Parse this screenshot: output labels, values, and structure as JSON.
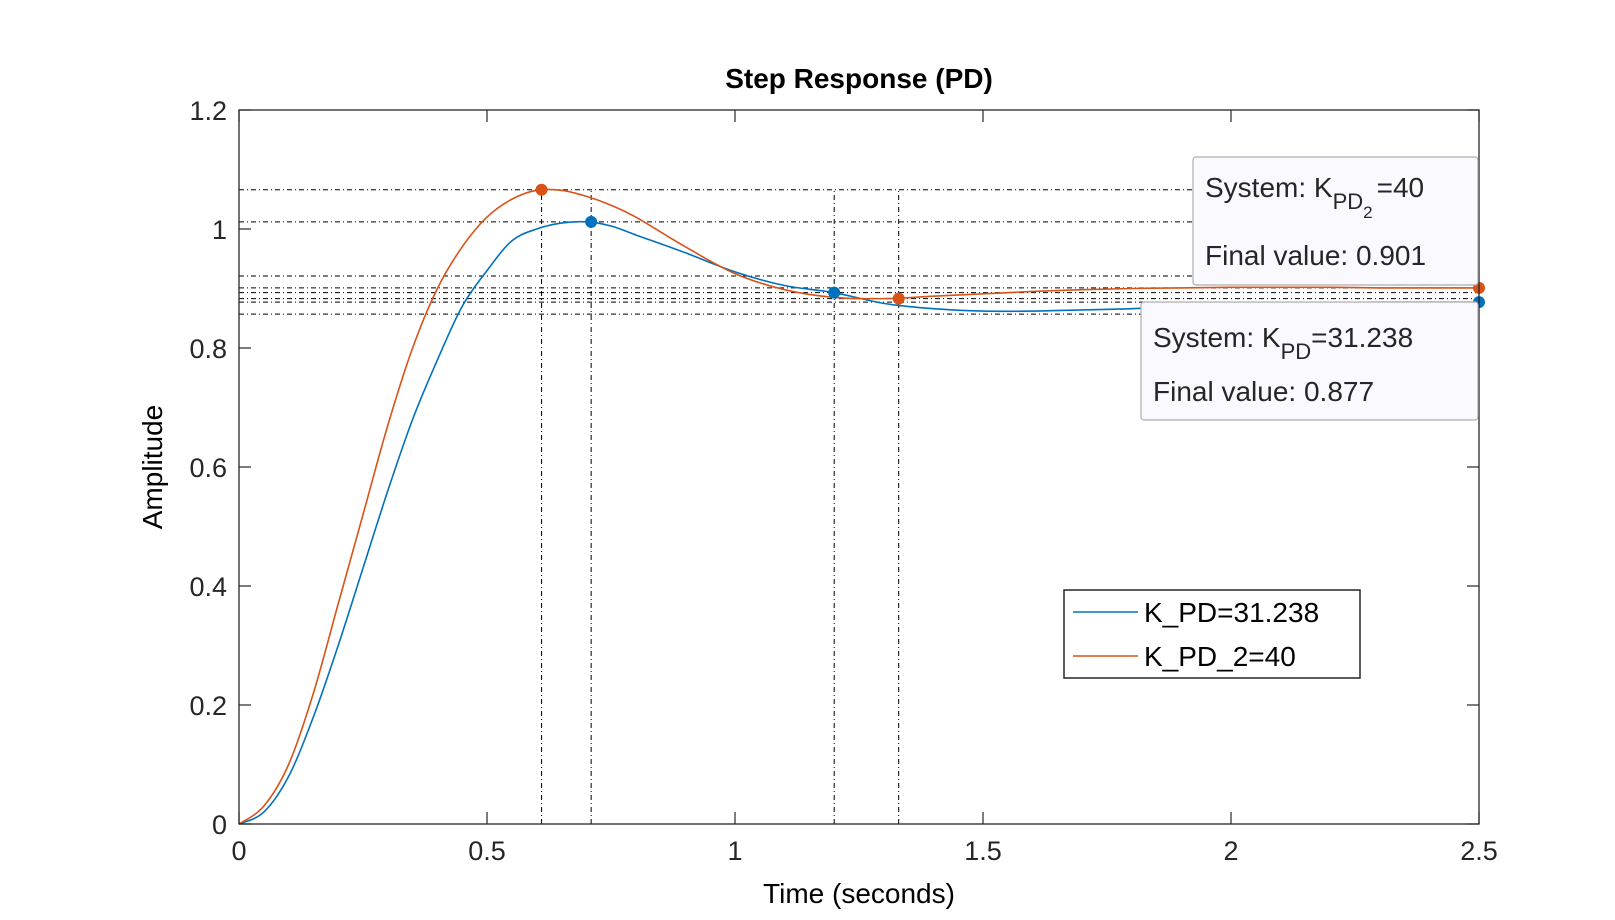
{
  "chart_data": {
    "type": "line",
    "title": "Step Response (PD)",
    "xlabel": "Time (seconds)",
    "ylabel": "Amplitude",
    "xlim": [
      0,
      2.5
    ],
    "ylim": [
      0,
      1.2
    ],
    "x_ticks": [
      "0",
      "0.5",
      "1",
      "1.5",
      "2",
      "2.5"
    ],
    "y_ticks": [
      "0",
      "0.2",
      "0.4",
      "0.6",
      "0.8",
      "1",
      "1.2"
    ],
    "x_tick_values": [
      0,
      0.5,
      1,
      1.5,
      2,
      2.5
    ],
    "y_tick_values": [
      0,
      0.2,
      0.4,
      0.6,
      0.8,
      1,
      1.2
    ],
    "grid": false,
    "legend_position": "lower-right",
    "series": [
      {
        "name": "K_PD=31.238",
        "color": "#0072BD",
        "x": [
          0,
          0.05,
          0.1,
          0.15,
          0.2,
          0.25,
          0.3,
          0.35,
          0.4,
          0.45,
          0.5,
          0.55,
          0.6,
          0.65,
          0.7,
          0.75,
          0.8,
          0.9,
          1.0,
          1.1,
          1.2,
          1.3,
          1.4,
          1.5,
          1.6,
          1.7,
          1.8,
          1.9,
          2.0,
          2.1,
          2.2,
          2.3,
          2.4,
          2.5
        ],
        "y": [
          0,
          0.02,
          0.08,
          0.18,
          0.3,
          0.43,
          0.56,
          0.68,
          0.78,
          0.87,
          0.93,
          0.98,
          1.0,
          1.01,
          1.012,
          1.005,
          0.99,
          0.96,
          0.928,
          0.905,
          0.893,
          0.875,
          0.866,
          0.862,
          0.862,
          0.864,
          0.866,
          0.87,
          0.873,
          0.875,
          0.876,
          0.877,
          0.877,
          0.877
        ],
        "markers": [
          {
            "label": "peak",
            "x": 0.71,
            "y": 1.012
          },
          {
            "label": "settling",
            "x": 1.2,
            "y": 0.893
          },
          {
            "label": "final",
            "x": 2.5,
            "y": 0.877
          }
        ]
      },
      {
        "name": "K_PD_2=40",
        "color": "#D95319",
        "x": [
          0,
          0.05,
          0.1,
          0.15,
          0.2,
          0.25,
          0.3,
          0.35,
          0.4,
          0.45,
          0.5,
          0.55,
          0.6,
          0.65,
          0.7,
          0.75,
          0.8,
          0.9,
          1.0,
          1.1,
          1.2,
          1.3,
          1.4,
          1.5,
          1.6,
          1.7,
          1.8,
          1.9,
          2.0,
          2.1,
          2.2,
          2.3,
          2.4,
          2.5
        ],
        "y": [
          0,
          0.03,
          0.1,
          0.22,
          0.37,
          0.52,
          0.67,
          0.8,
          0.9,
          0.97,
          1.02,
          1.05,
          1.065,
          1.065,
          1.055,
          1.04,
          1.02,
          0.97,
          0.925,
          0.898,
          0.885,
          0.883,
          0.887,
          0.891,
          0.895,
          0.898,
          0.9,
          0.901,
          0.902,
          0.902,
          0.902,
          0.901,
          0.901,
          0.901
        ],
        "markers": [
          {
            "label": "peak",
            "x": 0.61,
            "y": 1.066
          },
          {
            "label": "settling",
            "x": 1.33,
            "y": 0.883
          },
          {
            "label": "final",
            "x": 2.5,
            "y": 0.901
          }
        ]
      }
    ],
    "reference_lines": {
      "horizontal": [
        1.066,
        1.012,
        0.921,
        0.901,
        0.893,
        0.883,
        0.877,
        0.857
      ],
      "vertical": [
        0.61,
        0.71,
        1.2,
        1.33
      ]
    },
    "datatips": [
      {
        "system_prefix": "System: K",
        "system_sub": "PD",
        "system_subsub": "2",
        "system_value": "=40",
        "final_label": "Final value: 0.901"
      },
      {
        "system_prefix": "System: K",
        "system_sub": "PD",
        "system_value": "=31.238",
        "final_label": "Final value: 0.877"
      }
    ]
  }
}
